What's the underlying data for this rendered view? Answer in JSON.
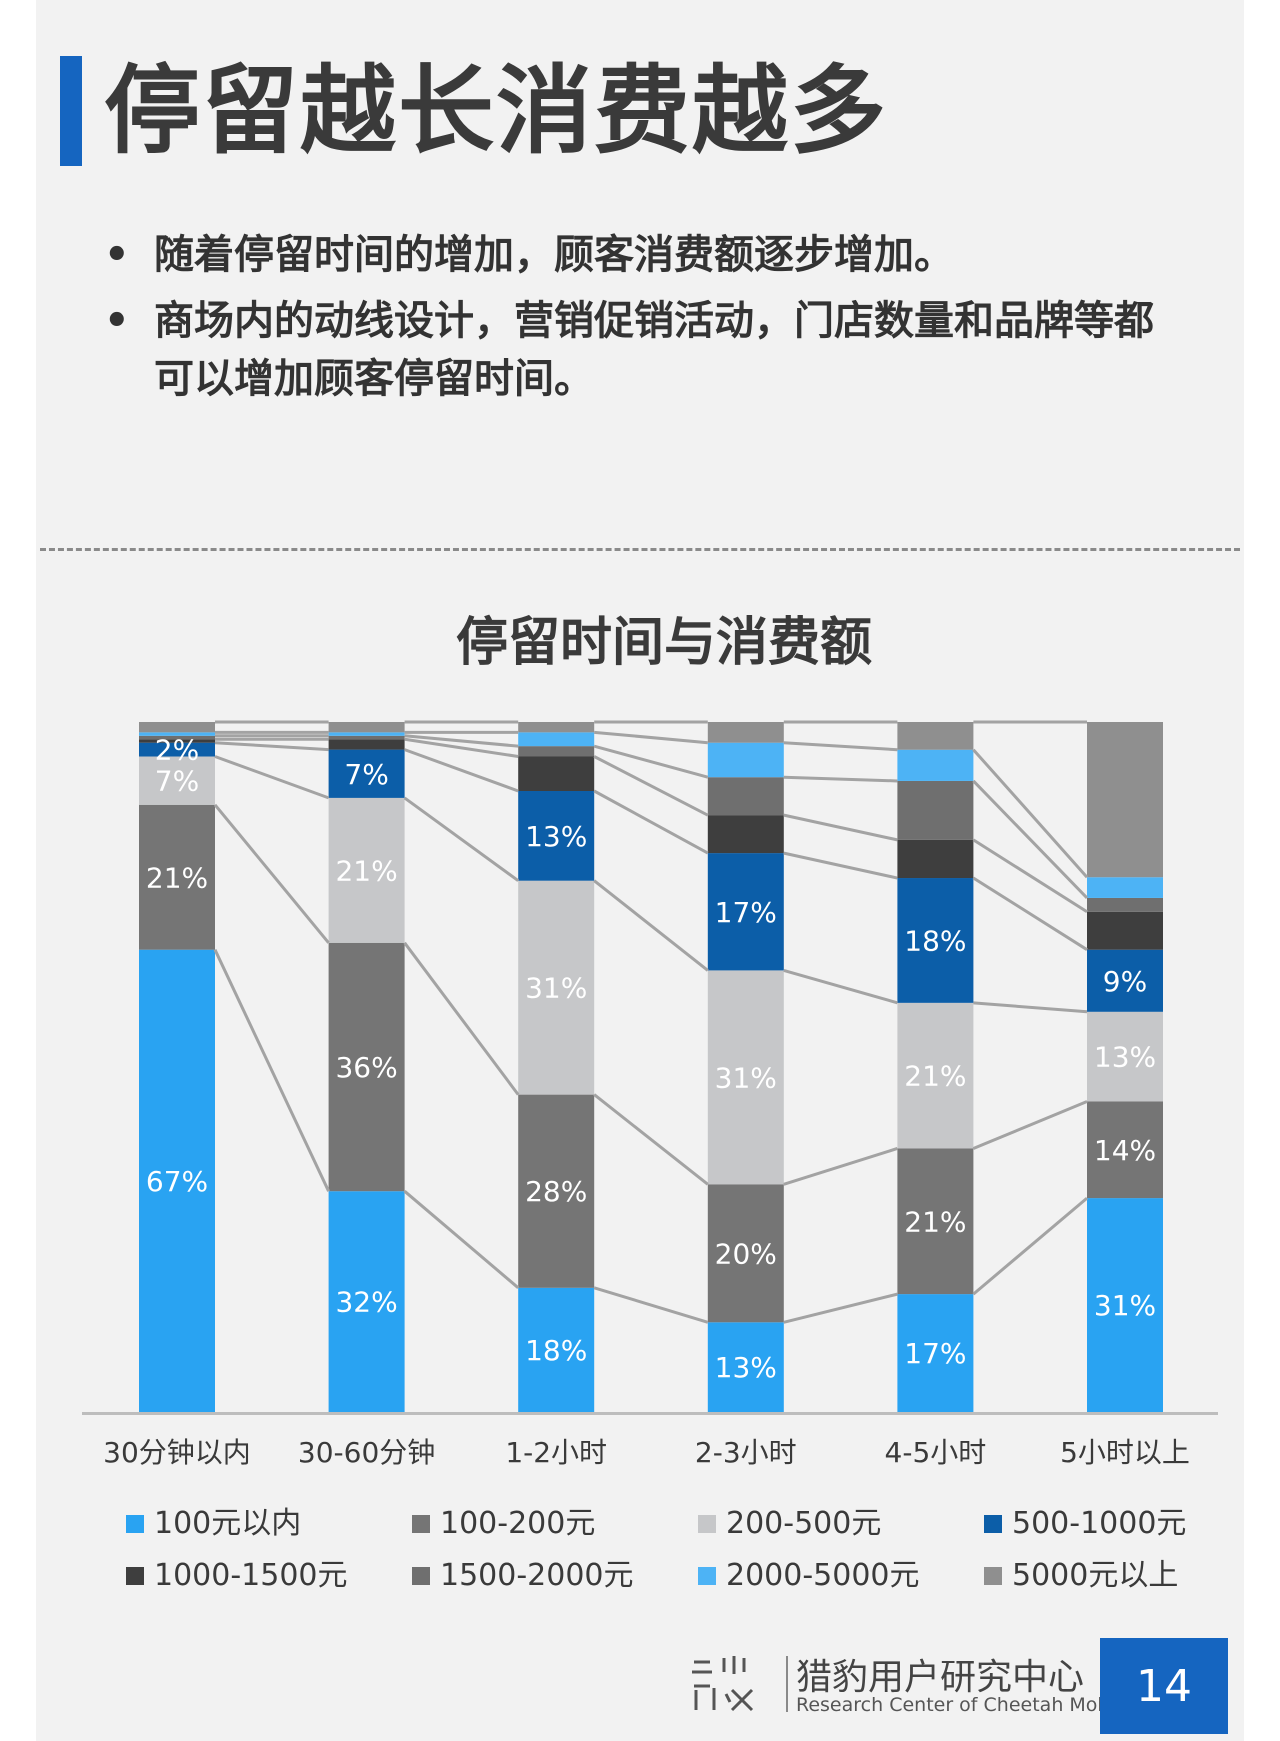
{
  "slide": {
    "title": "停留越长消费越多",
    "bullets": [
      "随着停留时间的增加，顾客消费额逐步增加。",
      "商场内的动线设计，营销促销活动，门店数量和品牌等都可以增加顾客停留时间。"
    ],
    "page_number": "14"
  },
  "footer": {
    "org_cn": "猎豹用户研究中心",
    "org_en": "Research Center of Cheetah Mobile",
    "logo_icon": "cheetah-research-logo-icon"
  },
  "colors": {
    "accent": "#1565c0"
  },
  "chart_data": {
    "type": "bar",
    "stacked": true,
    "normalized_percent": true,
    "title": "停留时间与消费额",
    "xlabel": "",
    "ylabel": "",
    "ylim": [
      0,
      100
    ],
    "grid": false,
    "legend_position": "bottom",
    "categories": [
      "30分钟以内",
      "30-60分钟",
      "1-2小时",
      "2-3小时",
      "4-5小时",
      "5小时以上"
    ],
    "series": [
      {
        "name": "100元以内",
        "color": "#29a3f2",
        "values": [
          67,
          32,
          18,
          13,
          17,
          31
        ],
        "labels": [
          "67%",
          "32%",
          "18%",
          "13%",
          "17%",
          "31%"
        ]
      },
      {
        "name": "100-200元",
        "color": "#757575",
        "values": [
          21,
          36,
          28,
          20,
          21,
          14
        ],
        "labels": [
          "21%",
          "36%",
          "28%",
          "20%",
          "21%",
          "14%"
        ]
      },
      {
        "name": "200-500元",
        "color": "#c6c7c9",
        "values": [
          7,
          21,
          31,
          31,
          21,
          13
        ],
        "labels": [
          "7%",
          "21%",
          "31%",
          "31%",
          "21%",
          "13%"
        ]
      },
      {
        "name": "500-1000元",
        "color": "#0c5ea8",
        "values": [
          2,
          7,
          13,
          17,
          18,
          9
        ],
        "labels": [
          "2%",
          "7%",
          "13%",
          "17%",
          "18%",
          "9%"
        ]
      },
      {
        "name": "1000-1500元",
        "color": "#3e3e3e",
        "values": [
          0.5,
          1.5,
          5,
          5.5,
          5.5,
          5.5
        ],
        "labels": [
          "",
          "",
          "",
          "",
          "",
          ""
        ]
      },
      {
        "name": "1500-2000元",
        "color": "#6f6f6f",
        "values": [
          0.5,
          0.5,
          1.5,
          5.5,
          8.5,
          2
        ],
        "labels": [
          "",
          "",
          "",
          "",
          "",
          ""
        ]
      },
      {
        "name": "2000-5000元",
        "color": "#4db3f5",
        "values": [
          0.5,
          0.5,
          2,
          5,
          4.5,
          3
        ],
        "labels": [
          "",
          "",
          "",
          "",
          "",
          ""
        ]
      },
      {
        "name": "5000元以上",
        "color": "#8f8f8f",
        "values": [
          1.5,
          1.5,
          1.5,
          3,
          4,
          22.5
        ],
        "labels": [
          "",
          "",
          "",
          "",
          "",
          ""
        ]
      }
    ]
  }
}
